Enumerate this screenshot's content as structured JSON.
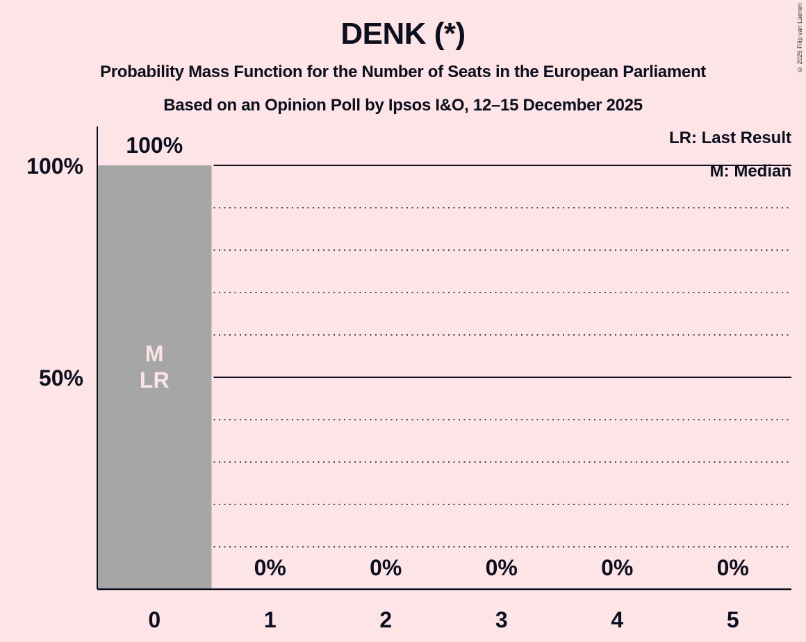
{
  "header": {
    "title": "DENK (*)",
    "subtitle": "Probability Mass Function for the Number of Seats in the European Parliament",
    "source": "Based on an Opinion Poll by Ipsos I&O, 12–15 December 2025"
  },
  "copyright": "© 2025 Filip van Laenen",
  "legend": {
    "last_result": "LR: Last Result",
    "median": "M: Median"
  },
  "colors": {
    "background": "#fce4e7",
    "bar": "#a6a6a6",
    "text": "#0d0f1e",
    "bar_label": "#fce4e7"
  },
  "chart_data": {
    "type": "bar",
    "title": "DENK (*)",
    "subtitle": "Probability Mass Function for the Number of Seats in the European Parliament",
    "caption": "Based on an Opinion Poll by Ipsos I&O, 12–15 December 2025",
    "xlabel": "",
    "ylabel": "",
    "categories": [
      "0",
      "1",
      "2",
      "3",
      "4",
      "5"
    ],
    "values": [
      100,
      0,
      0,
      0,
      0,
      0
    ],
    "value_labels": [
      "100%",
      "0%",
      "0%",
      "0%",
      "0%",
      "0%"
    ],
    "ylim": [
      0,
      100
    ],
    "yticks": [
      50,
      100
    ],
    "ytick_labels": [
      "50%",
      "100%"
    ],
    "grid": {
      "dotted_every": 10,
      "solid_at": [
        50,
        100
      ]
    },
    "annotations": [
      {
        "category": "0",
        "text": "M",
        "meaning": "Median"
      },
      {
        "category": "0",
        "text": "LR",
        "meaning": "Last Result"
      }
    ],
    "legend_position": "top-right"
  }
}
